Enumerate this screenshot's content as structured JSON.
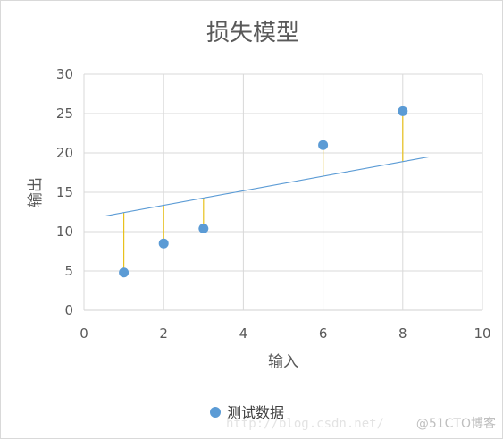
{
  "chart_data": {
    "type": "scatter",
    "title": "损失模型",
    "xlabel": "输入",
    "ylabel": "输出",
    "xlim": [
      0,
      10
    ],
    "ylim": [
      0,
      30
    ],
    "xticks": [
      "0",
      "2",
      "4",
      "6",
      "8",
      "10"
    ],
    "yticks": [
      "0",
      "5",
      "10",
      "15",
      "20",
      "25",
      "30"
    ],
    "grid": true,
    "legend_position": "bottom",
    "series": [
      {
        "name": "测试数据",
        "color": "#5b9bd5",
        "points": [
          {
            "x": 1,
            "y": 4.8
          },
          {
            "x": 2,
            "y": 8.5
          },
          {
            "x": 3,
            "y": 10.4
          },
          {
            "x": 6,
            "y": 21.0
          },
          {
            "x": 8,
            "y": 25.3
          }
        ]
      }
    ],
    "fit_line": {
      "color": "#5b9bd5",
      "x": [
        0.55,
        8.65
      ],
      "y": [
        12.0,
        19.5
      ]
    },
    "residual_color": "#e8c11c"
  },
  "watermark": {
    "left": "http://blog.csdn.net/",
    "right": "@51CTO博客"
  }
}
